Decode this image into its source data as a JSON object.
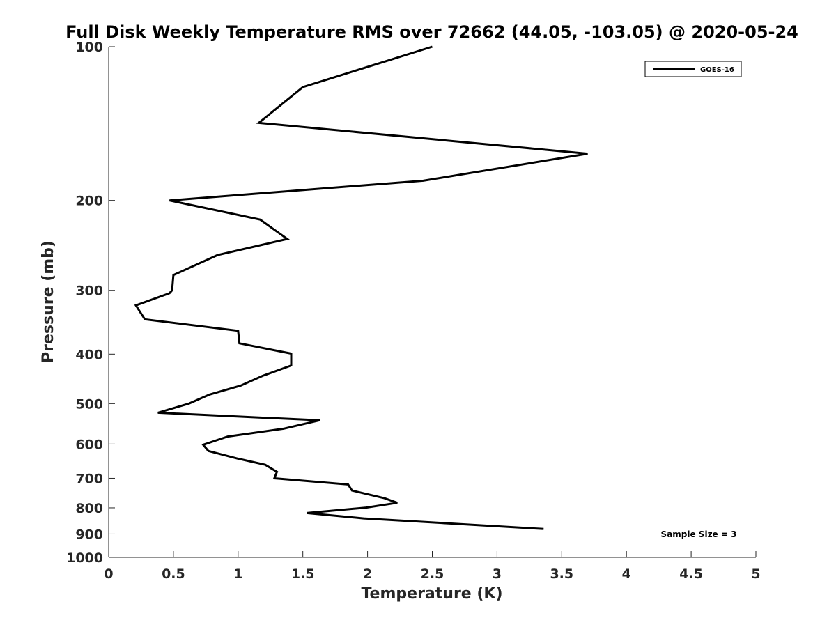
{
  "chart_data": {
    "type": "line",
    "title": "Full Disk Weekly Temperature RMS over 72662 (44.05, -103.05) @ 2020-05-24",
    "xlabel": "Temperature (K)",
    "ylabel": "Pressure (mb)",
    "xlim": [
      0,
      5
    ],
    "ylim": [
      100,
      1000
    ],
    "y_scale": "log",
    "y_reversed": true,
    "x_ticks": [
      "0",
      "0.5",
      "1",
      "1.5",
      "2",
      "2.5",
      "3",
      "3.5",
      "4",
      "4.5",
      "5"
    ],
    "y_ticks": [
      "100",
      "200",
      "300",
      "400",
      "500",
      "600",
      "700",
      "800",
      "900",
      "1000"
    ],
    "grid": false,
    "legend_position": "top-right",
    "annotation": "Sample Size = 3",
    "series": [
      {
        "name": "GOES-16",
        "color": "#000000",
        "x": [
          2.5,
          1.5,
          1.16,
          3.7,
          2.43,
          0.47,
          1.17,
          1.38,
          0.84,
          0.5,
          0.49,
          0.47,
          0.21,
          0.28,
          1.0,
          1.01,
          1.41,
          1.41,
          1.19,
          1.02,
          0.78,
          0.62,
          0.38,
          1.63,
          1.35,
          0.92,
          0.73,
          0.77,
          1.0,
          1.21,
          1.3,
          1.28,
          1.85,
          1.88,
          2.13,
          2.23,
          1.99,
          1.53,
          1.97,
          3.36
        ],
        "y": [
          100,
          120,
          141,
          162,
          183,
          200,
          218,
          238,
          256,
          280,
          300,
          304,
          321,
          342,
          360,
          381,
          399,
          421,
          441,
          461,
          480,
          500,
          521,
          539,
          560,
          580,
          602,
          619,
          641,
          659,
          680,
          700,
          720,
          740,
          766,
          782,
          799,
          819,
          839,
          880
        ]
      }
    ]
  }
}
